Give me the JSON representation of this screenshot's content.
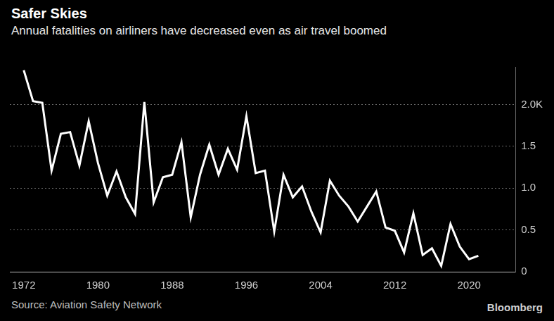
{
  "chart_data": {
    "type": "line",
    "title": "Safer Skies",
    "subtitle": "Annual fatalities on airliners have decreased even as air travel boomed",
    "source": "Source: Aviation Safety Network",
    "credit": "Bloomberg",
    "x": [
      1972,
      1973,
      1974,
      1975,
      1976,
      1977,
      1978,
      1979,
      1980,
      1981,
      1982,
      1983,
      1984,
      1985,
      1986,
      1987,
      1988,
      1989,
      1990,
      1991,
      1992,
      1993,
      1994,
      1995,
      1996,
      1997,
      1998,
      1999,
      2000,
      2001,
      2002,
      2003,
      2004,
      2005,
      2006,
      2007,
      2008,
      2009,
      2010,
      2011,
      2012,
      2013,
      2014,
      2015,
      2016,
      2017,
      2018,
      2019,
      2020,
      2021
    ],
    "values": [
      2.41,
      2.04,
      2.02,
      1.21,
      1.65,
      1.67,
      1.27,
      1.8,
      1.3,
      0.91,
      1.2,
      0.89,
      0.69,
      2.03,
      0.83,
      1.13,
      1.16,
      1.55,
      0.65,
      1.16,
      1.52,
      1.16,
      1.47,
      1.22,
      1.86,
      1.18,
      1.21,
      0.48,
      1.16,
      0.89,
      1.02,
      0.72,
      0.47,
      1.09,
      0.91,
      0.78,
      0.6,
      0.78,
      0.96,
      0.53,
      0.49,
      0.23,
      0.7,
      0.2,
      0.28,
      0.07,
      0.57,
      0.3,
      0.15,
      0.19
    ],
    "color": "#ffffff",
    "xlim": [
      1970.5,
      2025
    ],
    "xticks": [
      1972,
      1980,
      1988,
      1996,
      2004,
      2012,
      2020
    ],
    "ylim": [
      0,
      2.45
    ],
    "yticks": [
      0,
      0.5,
      {
        "value": 1,
        "label": "1.0"
      },
      1.5,
      {
        "value": 2,
        "label": "2.0K"
      }
    ],
    "grid": true
  }
}
